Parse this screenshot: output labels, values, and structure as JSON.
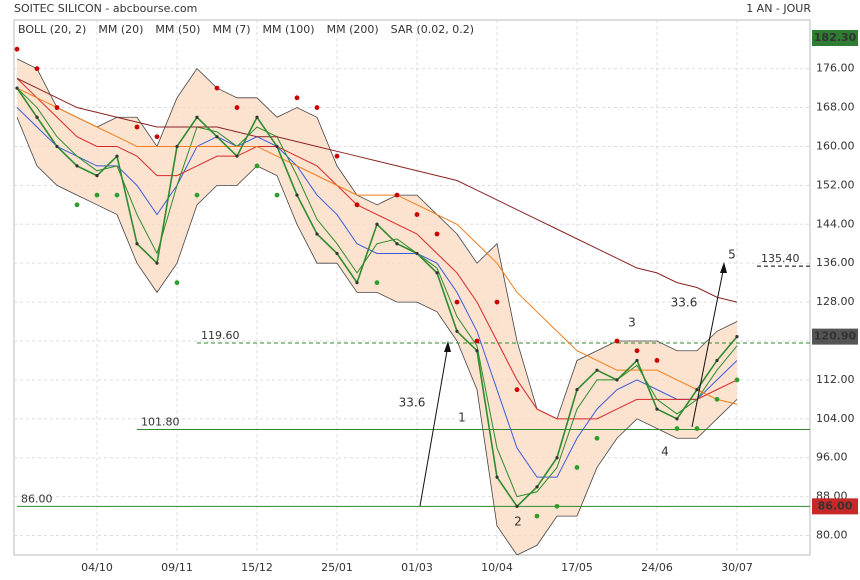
{
  "chart_data": {
    "type": "line",
    "title": "SOITEC SILICON - abcbourse.com",
    "period": "1 AN - JOUR",
    "categories": [
      null,
      null,
      null,
      null,
      "04/10",
      null,
      null,
      null,
      "09/11",
      null,
      null,
      null,
      "15/12",
      null,
      null,
      null,
      "25/01",
      null,
      null,
      null,
      "01/03",
      null,
      null,
      null,
      "10/04",
      null,
      null,
      null,
      "17/05",
      null,
      null,
      null,
      "24/06",
      null,
      null,
      null,
      "30/07"
    ],
    "ylim": [
      76,
      186
    ],
    "yticks": [
      {
        "value": 80,
        "label": "80.00"
      },
      {
        "value": 88,
        "label": "88.00"
      },
      {
        "value": 96,
        "label": "96.00"
      },
      {
        "value": 104,
        "label": "104.00"
      },
      {
        "value": 112,
        "label": "112.00"
      },
      {
        "value": 120,
        "label": "120.00"
      },
      {
        "value": 128,
        "label": "128.00"
      },
      {
        "value": 136,
        "label": "136.00"
      },
      {
        "value": 144,
        "label": "144.00"
      },
      {
        "value": 152,
        "label": "152.00"
      },
      {
        "value": 160,
        "label": "160.00"
      },
      {
        "value": 168,
        "label": "168.00"
      },
      {
        "value": 176,
        "label": "176.00"
      }
    ],
    "grid": true,
    "price": {
      "color": "#2e8b2e",
      "values": [
        172,
        166,
        160,
        156,
        154,
        158,
        140,
        136,
        160,
        166,
        162,
        158,
        166,
        160,
        150,
        142,
        138,
        132,
        144,
        140,
        138,
        134,
        122,
        118,
        92,
        86,
        90,
        96,
        110,
        114,
        112,
        116,
        106,
        104,
        110,
        116,
        120.9
      ]
    },
    "bollinger": {
      "name": "BOLL (20, 2)",
      "color": "#444444",
      "fill": "#fbdcc4",
      "upper": [
        178,
        176,
        168,
        166,
        164,
        166,
        166,
        160,
        170,
        176,
        172,
        170,
        170,
        166,
        168,
        166,
        156,
        150,
        148,
        150,
        150,
        146,
        142,
        136,
        140,
        120,
        106,
        104,
        116,
        118,
        120,
        120,
        120,
        118,
        118,
        122,
        124
      ],
      "lower": [
        166,
        156,
        152,
        150,
        148,
        146,
        136,
        130,
        136,
        148,
        152,
        152,
        156,
        154,
        144,
        136,
        136,
        130,
        130,
        128,
        128,
        126,
        120,
        110,
        82,
        76,
        78,
        84,
        84,
        94,
        100,
        104,
        102,
        100,
        100,
        104,
        108
      ]
    },
    "series": [
      {
        "name": "MM (20)",
        "color": "#3b5bdb",
        "values": [
          168,
          164,
          160,
          158,
          156,
          156,
          152,
          146,
          152,
          160,
          162,
          160,
          162,
          160,
          156,
          150,
          146,
          140,
          138,
          138,
          138,
          136,
          130,
          122,
          110,
          98,
          92,
          92,
          100,
          106,
          110,
          112,
          110,
          108,
          108,
          112,
          116
        ]
      },
      {
        "name": "MM (50)",
        "color": "#d62728",
        "values": [
          174,
          170,
          166,
          162,
          160,
          160,
          158,
          154,
          154,
          156,
          158,
          158,
          160,
          160,
          158,
          156,
          152,
          148,
          146,
          144,
          142,
          138,
          134,
          128,
          120,
          112,
          106,
          104,
          104,
          104,
          106,
          108,
          108,
          108,
          108,
          110,
          112
        ]
      },
      {
        "name": "MM (7)",
        "color": "#2c8c2c",
        "values": [
          172,
          168,
          162,
          158,
          155,
          156,
          146,
          138,
          152,
          164,
          163,
          160,
          164,
          162,
          154,
          145,
          140,
          134,
          140,
          141,
          138,
          135,
          125,
          119,
          98,
          88,
          89,
          94,
          106,
          112,
          112,
          115,
          108,
          105,
          108,
          114,
          119
        ]
      },
      {
        "name": "MM (100)",
        "color": "#f07d1a",
        "values": [
          172,
          170,
          168,
          166,
          164,
          162,
          160,
          160,
          160,
          160,
          160,
          160,
          160,
          158,
          156,
          154,
          152,
          150,
          150,
          150,
          148,
          146,
          144,
          140,
          136,
          130,
          126,
          122,
          118,
          116,
          114,
          114,
          114,
          112,
          110,
          108,
          107
        ]
      },
      {
        "name": "MM (200)",
        "color": "#8b2323",
        "values": [
          174,
          172,
          170,
          168,
          167,
          166,
          165,
          164,
          164,
          164,
          164,
          163,
          162,
          162,
          161,
          160,
          159,
          158,
          157,
          156,
          155,
          154,
          153,
          151,
          149,
          147,
          145,
          143,
          141,
          139,
          137,
          135,
          134,
          132,
          131,
          129,
          128
        ]
      }
    ],
    "sar": {
      "name": "SAR (0.02, 0.2)",
      "color": "#cc0000",
      "below_color": "#2e9e2e",
      "values": [
        180,
        176,
        168,
        148,
        150,
        150,
        164,
        162,
        132,
        150,
        172,
        168,
        156,
        150,
        170,
        168,
        158,
        148,
        132,
        150,
        146,
        142,
        128,
        120,
        128,
        110,
        84,
        86,
        94,
        100,
        120,
        118,
        116,
        102,
        102,
        108,
        112
      ]
    },
    "levels": [
      {
        "value": 119.6,
        "label": "119.60",
        "color": "#2e8b2e",
        "dashed": true,
        "start": 9
      },
      {
        "value": 101.8,
        "label": "101.80",
        "color": "#2e8b2e",
        "dashed": false,
        "start": 6
      },
      {
        "value": 86,
        "label": "86.00",
        "color": "#2e8b2e",
        "dashed": false,
        "start": 0
      },
      {
        "value": 135.4,
        "label": "135.40",
        "color": "#000000",
        "dashed": true,
        "start": 37
      }
    ],
    "price_tags": [
      {
        "value": 182.3,
        "label": "182.30",
        "color": "#2e7d32"
      },
      {
        "value": 120.9,
        "label": "120.90",
        "color": "#555555"
      },
      {
        "value": 86,
        "label": "86.00",
        "color": "#c62828"
      }
    ],
    "annotations": [
      "33.6",
      "33.6",
      "1",
      "2",
      "3",
      "4",
      "5"
    ]
  }
}
